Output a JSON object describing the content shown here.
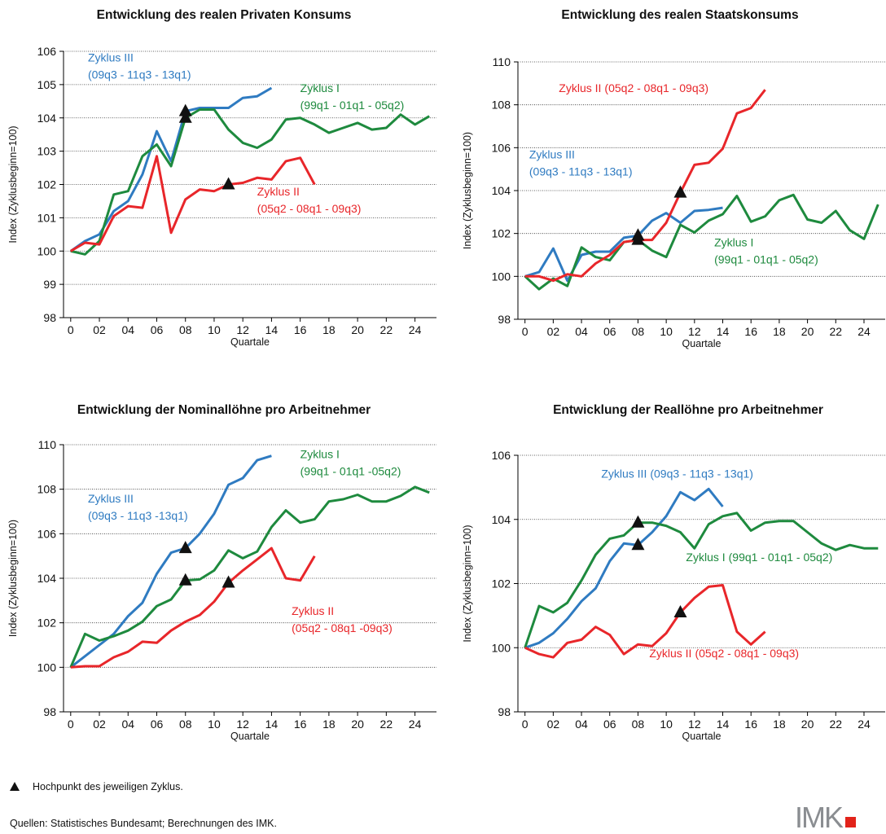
{
  "chart_data": [
    {
      "type": "line",
      "title": "Entwicklung des realen Privaten Konsums",
      "y_label": "Index (Zyklusbeginn=100)",
      "x_label": "Quartale",
      "x": [
        0,
        1,
        2,
        3,
        4,
        5,
        6,
        7,
        8,
        9,
        10,
        11,
        12,
        13,
        14,
        15,
        16,
        17,
        18,
        19,
        20,
        21,
        22,
        23,
        24,
        25
      ],
      "xlim": [
        -0.5,
        25.5
      ],
      "xticks": [
        0,
        {
          "value": 2,
          "label": "02"
        },
        {
          "value": 4,
          "label": "04"
        },
        {
          "value": 6,
          "label": "06"
        },
        {
          "value": 8,
          "label": "08"
        },
        10,
        12,
        14,
        16,
        18,
        20,
        22,
        24
      ],
      "ylim": [
        98,
        106
      ],
      "yticks": [
        98,
        99,
        100,
        101,
        102,
        103,
        104,
        105,
        106
      ],
      "grid": true,
      "series": [
        {
          "name": "Zyklus III",
          "period": "(09q3 - 11q3 - 13q1)",
          "color": "#2f7bc1",
          "peak": 8,
          "values": [
            100,
            100.3,
            100.5,
            101.2,
            101.5,
            102.3,
            103.6,
            102.7,
            104.2,
            104.3,
            104.3,
            104.3,
            104.6,
            104.65,
            104.9,
            null,
            null,
            null,
            null,
            null,
            null,
            null,
            null,
            null,
            null,
            null
          ]
        },
        {
          "name": "Zyklus I",
          "period": "(99q1 - 01q1 - 05q2)",
          "color": "#1e8a3e",
          "peak": 8,
          "values": [
            100,
            99.9,
            100.3,
            101.7,
            101.8,
            102.85,
            103.2,
            102.55,
            104.0,
            104.25,
            104.25,
            103.65,
            103.25,
            103.1,
            103.35,
            103.95,
            104.0,
            103.8,
            103.55,
            103.7,
            103.85,
            103.65,
            103.7,
            104.1,
            103.8,
            104.05
          ]
        },
        {
          "name": "Zyklus II",
          "period": "(05q2 - 08q1 - 09q3)",
          "color": "#e8262a",
          "peak": 11,
          "values": [
            100,
            100.25,
            100.2,
            101.05,
            101.35,
            101.3,
            102.85,
            100.55,
            101.55,
            101.85,
            101.8,
            102.0,
            102.05,
            102.2,
            102.15,
            102.7,
            102.8,
            102.0,
            null,
            null,
            null,
            null,
            null,
            null,
            null,
            null
          ]
        }
      ]
    },
    {
      "type": "line",
      "title": "Entwicklung des realen Staatskonsums",
      "y_label": "Index (Zyklusbeginn=100)",
      "x_label": "Quartale",
      "x": [
        0,
        1,
        2,
        3,
        4,
        5,
        6,
        7,
        8,
        9,
        10,
        11,
        12,
        13,
        14,
        15,
        16,
        17,
        18,
        19,
        20,
        21,
        22,
        23,
        24,
        25
      ],
      "xlim": [
        -0.5,
        25.5
      ],
      "xticks": [
        0,
        {
          "value": 2,
          "label": "02"
        },
        {
          "value": 4,
          "label": "04"
        },
        {
          "value": 6,
          "label": "06"
        },
        {
          "value": 8,
          "label": "08"
        },
        10,
        12,
        14,
        16,
        18,
        20,
        22,
        24
      ],
      "ylim": [
        98,
        110
      ],
      "yticks": [
        98,
        100,
        102,
        104,
        106,
        108,
        110
      ],
      "grid": true,
      "series": [
        {
          "name": "Zyklus III",
          "period": "(09q3 - 11q3 - 13q1)",
          "color": "#2f7bc1",
          "peak": 8,
          "values": [
            100,
            100.2,
            101.3,
            99.8,
            101.0,
            101.15,
            101.15,
            101.8,
            101.9,
            102.6,
            102.95,
            102.5,
            103.05,
            103.1,
            103.2,
            null,
            null,
            null,
            null,
            null,
            null,
            null,
            null,
            null,
            null,
            null
          ]
        },
        {
          "name": "Zyklus I",
          "period": "(99q1 - 01q1 - 05q2)",
          "color": "#1e8a3e",
          "peak": 8,
          "values": [
            100,
            99.4,
            99.9,
            99.55,
            101.35,
            100.9,
            100.75,
            101.6,
            101.7,
            101.2,
            100.9,
            102.4,
            102.05,
            102.6,
            102.9,
            103.75,
            102.55,
            102.8,
            103.55,
            103.8,
            102.65,
            102.5,
            103.05,
            102.15,
            101.75,
            103.35
          ]
        },
        {
          "name": "Zyklus II",
          "period": "(05q2 - 08q1 - 09q3)",
          "color": "#e8262a",
          "peak": 11,
          "values": [
            100,
            100,
            99.8,
            100.1,
            100,
            100.6,
            101.0,
            101.6,
            101.7,
            101.7,
            102.5,
            103.9,
            105.2,
            105.3,
            105.95,
            107.6,
            107.85,
            108.7,
            null,
            null,
            null,
            null,
            null,
            null,
            null,
            null
          ]
        }
      ]
    },
    {
      "type": "line",
      "title": "Entwicklung der Nominallöhne pro Arbeitnehmer",
      "y_label": "Index (Zyklusbeginn=100)",
      "x_label": "Quartale",
      "x": [
        0,
        1,
        2,
        3,
        4,
        5,
        6,
        7,
        8,
        9,
        10,
        11,
        12,
        13,
        14,
        15,
        16,
        17,
        18,
        19,
        20,
        21,
        22,
        23,
        24,
        25
      ],
      "xlim": [
        -0.5,
        25.5
      ],
      "xticks": [
        0,
        {
          "value": 2,
          "label": "02"
        },
        {
          "value": 4,
          "label": "04"
        },
        {
          "value": 6,
          "label": "06"
        },
        {
          "value": 8,
          "label": "08"
        },
        10,
        12,
        14,
        16,
        18,
        20,
        22,
        24
      ],
      "ylim": [
        98,
        110
      ],
      "yticks": [
        98,
        100,
        102,
        104,
        106,
        108,
        110
      ],
      "grid": true,
      "series": [
        {
          "name": "Zyklus III",
          "period": "(09q3 - 11q3 -13q1)",
          "color": "#2f7bc1",
          "peak": 8,
          "values": [
            100,
            100.5,
            101.0,
            101.5,
            102.3,
            102.9,
            104.2,
            105.15,
            105.35,
            106.0,
            106.9,
            108.2,
            108.5,
            109.3,
            109.5,
            null,
            null,
            null,
            null,
            null,
            null,
            null,
            null,
            null,
            null,
            null
          ]
        },
        {
          "name": "Zyklus I",
          "period": "(99q1 - 01q1 -05q2)",
          "color": "#1e8a3e",
          "peak": 8,
          "values": [
            100,
            101.5,
            101.2,
            101.4,
            101.65,
            102.05,
            102.75,
            103.05,
            103.9,
            103.95,
            104.35,
            105.25,
            104.9,
            105.2,
            106.3,
            107.05,
            106.5,
            106.65,
            107.45,
            107.55,
            107.75,
            107.45,
            107.45,
            107.7,
            108.1,
            107.85
          ]
        },
        {
          "name": "Zyklus II",
          "period": "(05q2 - 08q1 -09q3)",
          "color": "#e8262a",
          "peak": 11,
          "values": [
            100,
            100.05,
            100.05,
            100.45,
            100.7,
            101.15,
            101.1,
            101.65,
            102.05,
            102.35,
            102.95,
            103.8,
            104.35,
            104.85,
            105.35,
            104.0,
            103.9,
            105.0,
            null,
            null,
            null,
            null,
            null,
            null,
            null,
            null
          ]
        }
      ]
    },
    {
      "type": "line",
      "title": "Entwicklung der Reallöhne pro Arbeitnehmer",
      "y_label": "Index (Zyklusbeginn=100)",
      "x_label": "Quartale",
      "x": [
        0,
        1,
        2,
        3,
        4,
        5,
        6,
        7,
        8,
        9,
        10,
        11,
        12,
        13,
        14,
        15,
        16,
        17,
        18,
        19,
        20,
        21,
        22,
        23,
        24,
        25
      ],
      "xlim": [
        -0.5,
        25.5
      ],
      "xticks": [
        0,
        {
          "value": 2,
          "label": "02"
        },
        {
          "value": 4,
          "label": "04"
        },
        {
          "value": 6,
          "label": "06"
        },
        {
          "value": 8,
          "label": "08"
        },
        10,
        12,
        14,
        16,
        18,
        20,
        22,
        24
      ],
      "ylim": [
        98,
        106
      ],
      "yticks": [
        98,
        100,
        102,
        104,
        106
      ],
      "grid": true,
      "series": [
        {
          "name": "Zyklus III",
          "period": "(09q3 - 11q3 - 13q1)",
          "color": "#2f7bc1",
          "peak": 8,
          "values": [
            100,
            100.15,
            100.45,
            100.9,
            101.45,
            101.85,
            102.7,
            103.25,
            103.2,
            103.6,
            104.1,
            104.85,
            104.6,
            104.95,
            104.4,
            null,
            null,
            null,
            null,
            null,
            null,
            null,
            null,
            null,
            null,
            null
          ]
        },
        {
          "name": "Zyklus I",
          "period": "(99q1 - 01q1 - 05q2)",
          "color": "#1e8a3e",
          "peak": 8,
          "values": [
            100,
            101.3,
            101.1,
            101.4,
            102.1,
            102.9,
            103.4,
            103.5,
            103.9,
            103.9,
            103.8,
            103.6,
            103.1,
            103.85,
            104.1,
            104.2,
            103.65,
            103.9,
            103.95,
            103.95,
            103.6,
            103.25,
            103.05,
            103.2,
            103.1,
            103.1
          ]
        },
        {
          "name": "Zyklus II",
          "period": "(05q2 - 08q1 - 09q3)",
          "color": "#e8262a",
          "peak": 11,
          "values": [
            100,
            99.8,
            99.7,
            100.15,
            100.25,
            100.65,
            100.4,
            99.8,
            100.1,
            100.05,
            100.45,
            101.1,
            101.55,
            101.9,
            101.95,
            100.5,
            100.1,
            100.5,
            null,
            null,
            null,
            null,
            null,
            null,
            null,
            null
          ]
        }
      ]
    }
  ],
  "footnote": "Hochpunkt des jeweiligen Zyklus.",
  "source": "Quellen: Statistisches Bundesamt; Berechnungen des IMK.",
  "logo": "IMK"
}
